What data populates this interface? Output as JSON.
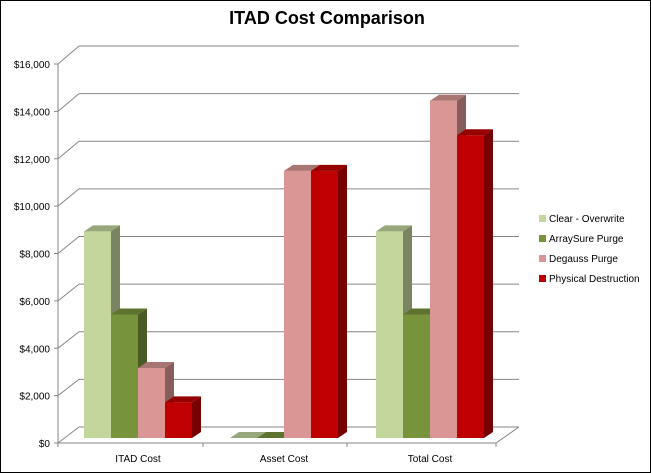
{
  "chart_data": {
    "type": "bar",
    "title": "ITAD Cost Comparison",
    "xlabel": "",
    "ylabel": "",
    "ylim": [
      0,
      16000
    ],
    "yticks": [
      "$0",
      "$2,000",
      "$4,000",
      "$6,000",
      "$8,000",
      "$10,000",
      "$12,000",
      "$14,000",
      "$16,000"
    ],
    "categories": [
      "ITAD Cost",
      "Asset Cost",
      "Total Cost"
    ],
    "series": [
      {
        "name": "Clear - Overwrite",
        "values": [
          8700,
          0,
          8700
        ],
        "color": "#c3d69b"
      },
      {
        "name": "ArraySure Purge",
        "values": [
          5200,
          0,
          5200
        ],
        "color": "#77933c"
      },
      {
        "name": "Degauss Purge",
        "values": [
          2950,
          11250,
          14200
        ],
        "color": "#d99694"
      },
      {
        "name": "Physical Destruction",
        "values": [
          1500,
          11250,
          12750
        ],
        "color": "#c00000"
      }
    ],
    "grid": true,
    "legend_position": "right",
    "style": "3d-clustered-column"
  }
}
